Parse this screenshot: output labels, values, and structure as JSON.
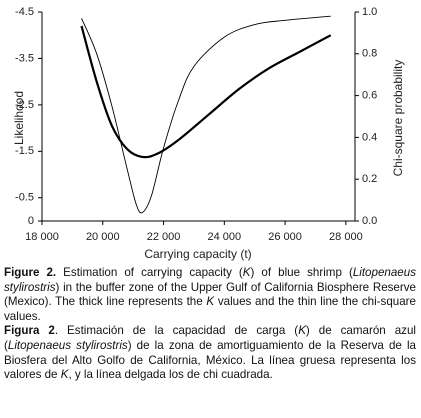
{
  "chart_data": {
    "type": "line",
    "y_label": "Likelihood",
    "y2_label": "Chi-square probability",
    "x_label": "Carrying capacity (t)",
    "xlim": [
      18000,
      28300
    ],
    "xticks": [
      {
        "value": 18000,
        "label": "18 000"
      },
      {
        "value": 20000,
        "label": "20 000"
      },
      {
        "value": 22000,
        "label": "22 000"
      },
      {
        "value": 24000,
        "label": "24 000"
      },
      {
        "value": 26000,
        "label": "26 000"
      },
      {
        "value": 28000,
        "label": "28 000"
      }
    ],
    "ylim": [
      0,
      -4.5
    ],
    "yticks": [
      -4.5,
      -3.5,
      -2.5,
      -1.5,
      -0.5,
      0
    ],
    "y2lim": [
      0,
      1
    ],
    "y2ticks": [
      {
        "value": 0,
        "label": "0.0"
      },
      0.2,
      0.4,
      0.6,
      0.8,
      {
        "value": 1,
        "label": "1.0"
      }
    ],
    "series": [
      {
        "color": "#000000",
        "width": 2.2,
        "x": [
          19300,
          19800,
          20300,
          20800,
          21300,
          21800,
          22500,
          23500,
          24500,
          25500,
          26500,
          27500
        ],
        "values": [
          -4.2,
          -3.0,
          -2.05,
          -1.55,
          -1.38,
          -1.45,
          -1.75,
          -2.3,
          -2.85,
          -3.3,
          -3.65,
          -4.0
        ]
      },
      {
        "color": "#000000",
        "width": 0.9,
        "axis": "y2",
        "x": [
          19300,
          19800,
          20300,
          20800,
          21100,
          21300,
          21600,
          22000,
          22500,
          23000,
          24000,
          25000,
          26000,
          27500
        ],
        "values": [
          0.97,
          0.8,
          0.55,
          0.25,
          0.08,
          0.04,
          0.12,
          0.35,
          0.58,
          0.74,
          0.88,
          0.94,
          0.96,
          0.98
        ]
      }
    ]
  },
  "caption": {
    "en": [
      {
        "text": "Figure 2.",
        "bold": true
      },
      {
        "text": " Estimation of carrying capacity ("
      },
      {
        "text": "K",
        "italic": true
      },
      {
        "text": ") of blue shrimp ("
      },
      {
        "text": "Litopenaeus stylirostris",
        "italic": true
      },
      {
        "text": ") in the buffer zone of the Upper Gulf of California Biosphere Reserve (Mexico). The thick line represents the "
      },
      {
        "text": "K",
        "italic": true
      },
      {
        "text": " values and the thin line the chi-square values."
      }
    ],
    "es": [
      {
        "text": "Figura 2",
        "bold": true
      },
      {
        "text": ". Estimación de la capacidad de carga ("
      },
      {
        "text": "K",
        "italic": true
      },
      {
        "text": ") de camarón azul ("
      },
      {
        "text": "Litopenaeus stylirostris",
        "italic": true
      },
      {
        "text": ") de la zona de amortiguamiento de la Reserva de la Biosfera del Alto Golfo de California, México. La línea gruesa representa los valores de "
      },
      {
        "text": "K",
        "italic": true
      },
      {
        "text": ", y la línea delgada los de chi cuadrada."
      }
    ]
  }
}
